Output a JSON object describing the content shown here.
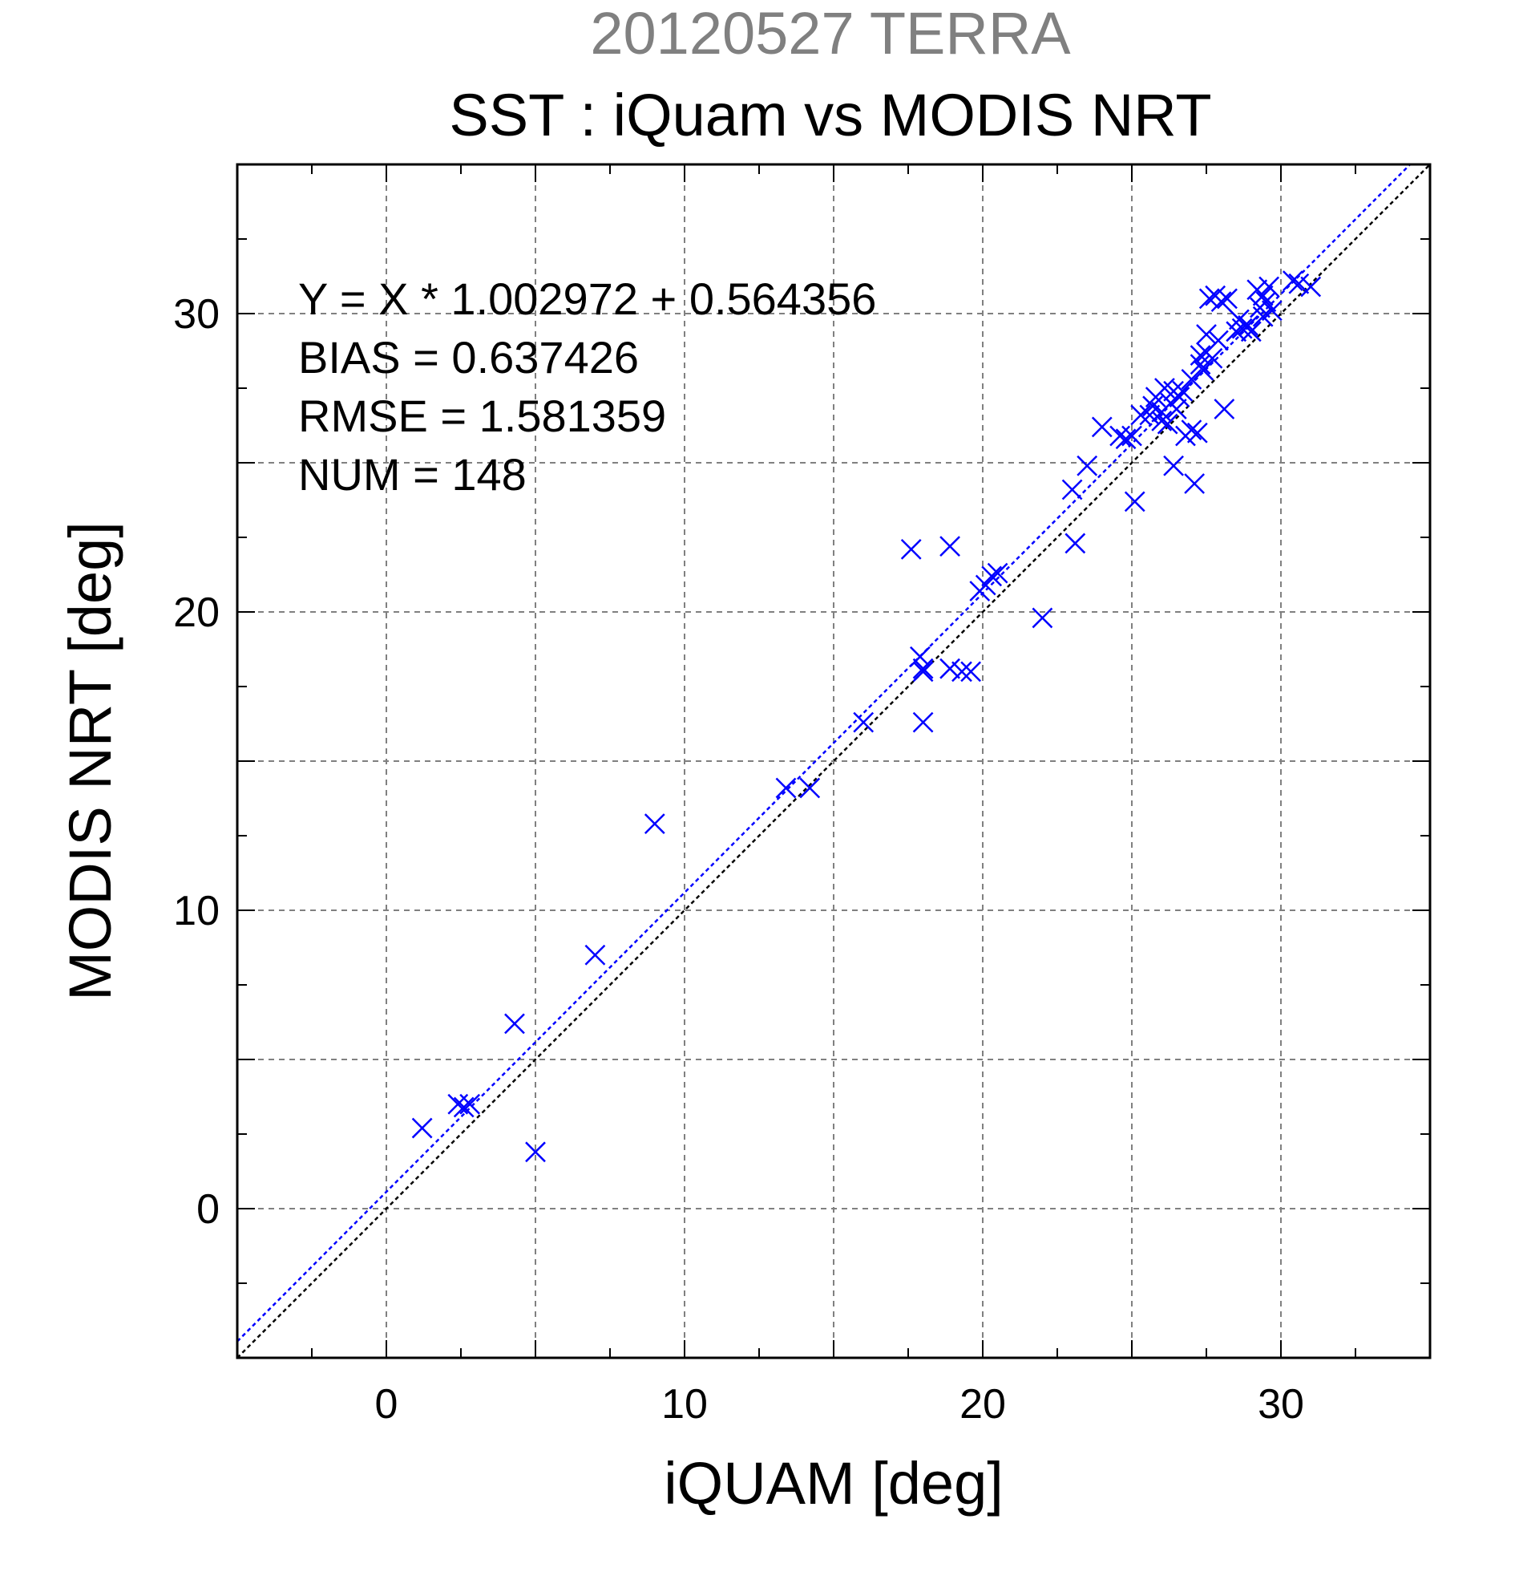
{
  "chart_data": {
    "type": "scatter",
    "title": "20120527 TERRA",
    "subtitle": "SST : iQuam vs MODIS NRT",
    "xlabel": "iQUAM [deg]",
    "ylabel": "MODIS NRT [deg]",
    "xlim": [
      -5,
      35
    ],
    "ylim": [
      -5,
      35
    ],
    "xticks": [
      "0",
      "10",
      "20",
      "30"
    ],
    "yticks": [
      "0",
      "10",
      "20",
      "30"
    ],
    "grid": true,
    "annotations": [
      "Y = X * 1.002972 + 0.564356",
      "BIAS = 0.637426",
      "RMSE = 1.581359",
      "NUM = 148"
    ],
    "fit_line": {
      "slope": 1.002972,
      "intercept": 0.564356,
      "color": "#0000ff"
    },
    "identity_line": {
      "slope": 1,
      "intercept": 0,
      "color": "#000000"
    },
    "marker_color": "#0000ff",
    "points": [
      [
        1.2,
        2.7
      ],
      [
        2.4,
        3.5
      ],
      [
        2.6,
        3.4
      ],
      [
        2.8,
        3.5
      ],
      [
        4.3,
        6.2
      ],
      [
        5.0,
        1.9
      ],
      [
        7.0,
        8.5
      ],
      [
        9.0,
        12.9
      ],
      [
        13.4,
        14.1
      ],
      [
        14.2,
        14.1
      ],
      [
        16.0,
        16.3
      ],
      [
        17.6,
        22.1
      ],
      [
        17.9,
        18.5
      ],
      [
        18.0,
        18.1
      ],
      [
        18.0,
        18.0
      ],
      [
        18.0,
        16.3
      ],
      [
        18.9,
        22.2
      ],
      [
        18.9,
        18.1
      ],
      [
        19.3,
        18.0
      ],
      [
        19.6,
        18.0
      ],
      [
        19.9,
        20.7
      ],
      [
        20.1,
        20.9
      ],
      [
        20.3,
        21.2
      ],
      [
        20.5,
        21.3
      ],
      [
        22.0,
        19.8
      ],
      [
        23.0,
        24.1
      ],
      [
        23.1,
        22.3
      ],
      [
        23.5,
        24.9
      ],
      [
        24.0,
        26.2
      ],
      [
        24.6,
        25.9
      ],
      [
        24.8,
        25.8
      ],
      [
        25.0,
        25.9
      ],
      [
        25.1,
        23.7
      ],
      [
        25.3,
        26.6
      ],
      [
        25.6,
        26.6
      ],
      [
        25.7,
        26.9
      ],
      [
        25.8,
        27.2
      ],
      [
        26.0,
        26.4
      ],
      [
        26.0,
        26.7
      ],
      [
        26.1,
        27.5
      ],
      [
        26.2,
        26.3
      ],
      [
        26.3,
        27.0
      ],
      [
        26.4,
        27.4
      ],
      [
        26.5,
        26.8
      ],
      [
        26.6,
        27.2
      ],
      [
        26.7,
        27.4
      ],
      [
        26.4,
        24.9
      ],
      [
        26.8,
        25.9
      ],
      [
        27.0,
        26.1
      ],
      [
        27.0,
        27.8
      ],
      [
        27.1,
        24.3
      ],
      [
        27.2,
        26.0
      ],
      [
        27.3,
        28.3
      ],
      [
        27.3,
        28.6
      ],
      [
        27.4,
        28.1
      ],
      [
        27.5,
        28.7
      ],
      [
        27.5,
        29.3
      ],
      [
        27.6,
        30.5
      ],
      [
        27.7,
        28.5
      ],
      [
        27.8,
        30.6
      ],
      [
        27.9,
        29.1
      ],
      [
        28.0,
        30.4
      ],
      [
        28.1,
        26.8
      ],
      [
        28.2,
        30.5
      ],
      [
        28.5,
        29.4
      ],
      [
        28.6,
        29.8
      ],
      [
        28.7,
        29.5
      ],
      [
        28.9,
        29.6
      ],
      [
        29.0,
        29.4
      ],
      [
        29.2,
        30.8
      ],
      [
        29.3,
        30.2
      ],
      [
        29.4,
        30.6
      ],
      [
        29.4,
        29.9
      ],
      [
        29.5,
        30.4
      ],
      [
        29.6,
        30.9
      ],
      [
        29.7,
        30.1
      ],
      [
        30.4,
        31.1
      ],
      [
        30.6,
        31.0
      ],
      [
        31.0,
        30.9
      ]
    ]
  }
}
